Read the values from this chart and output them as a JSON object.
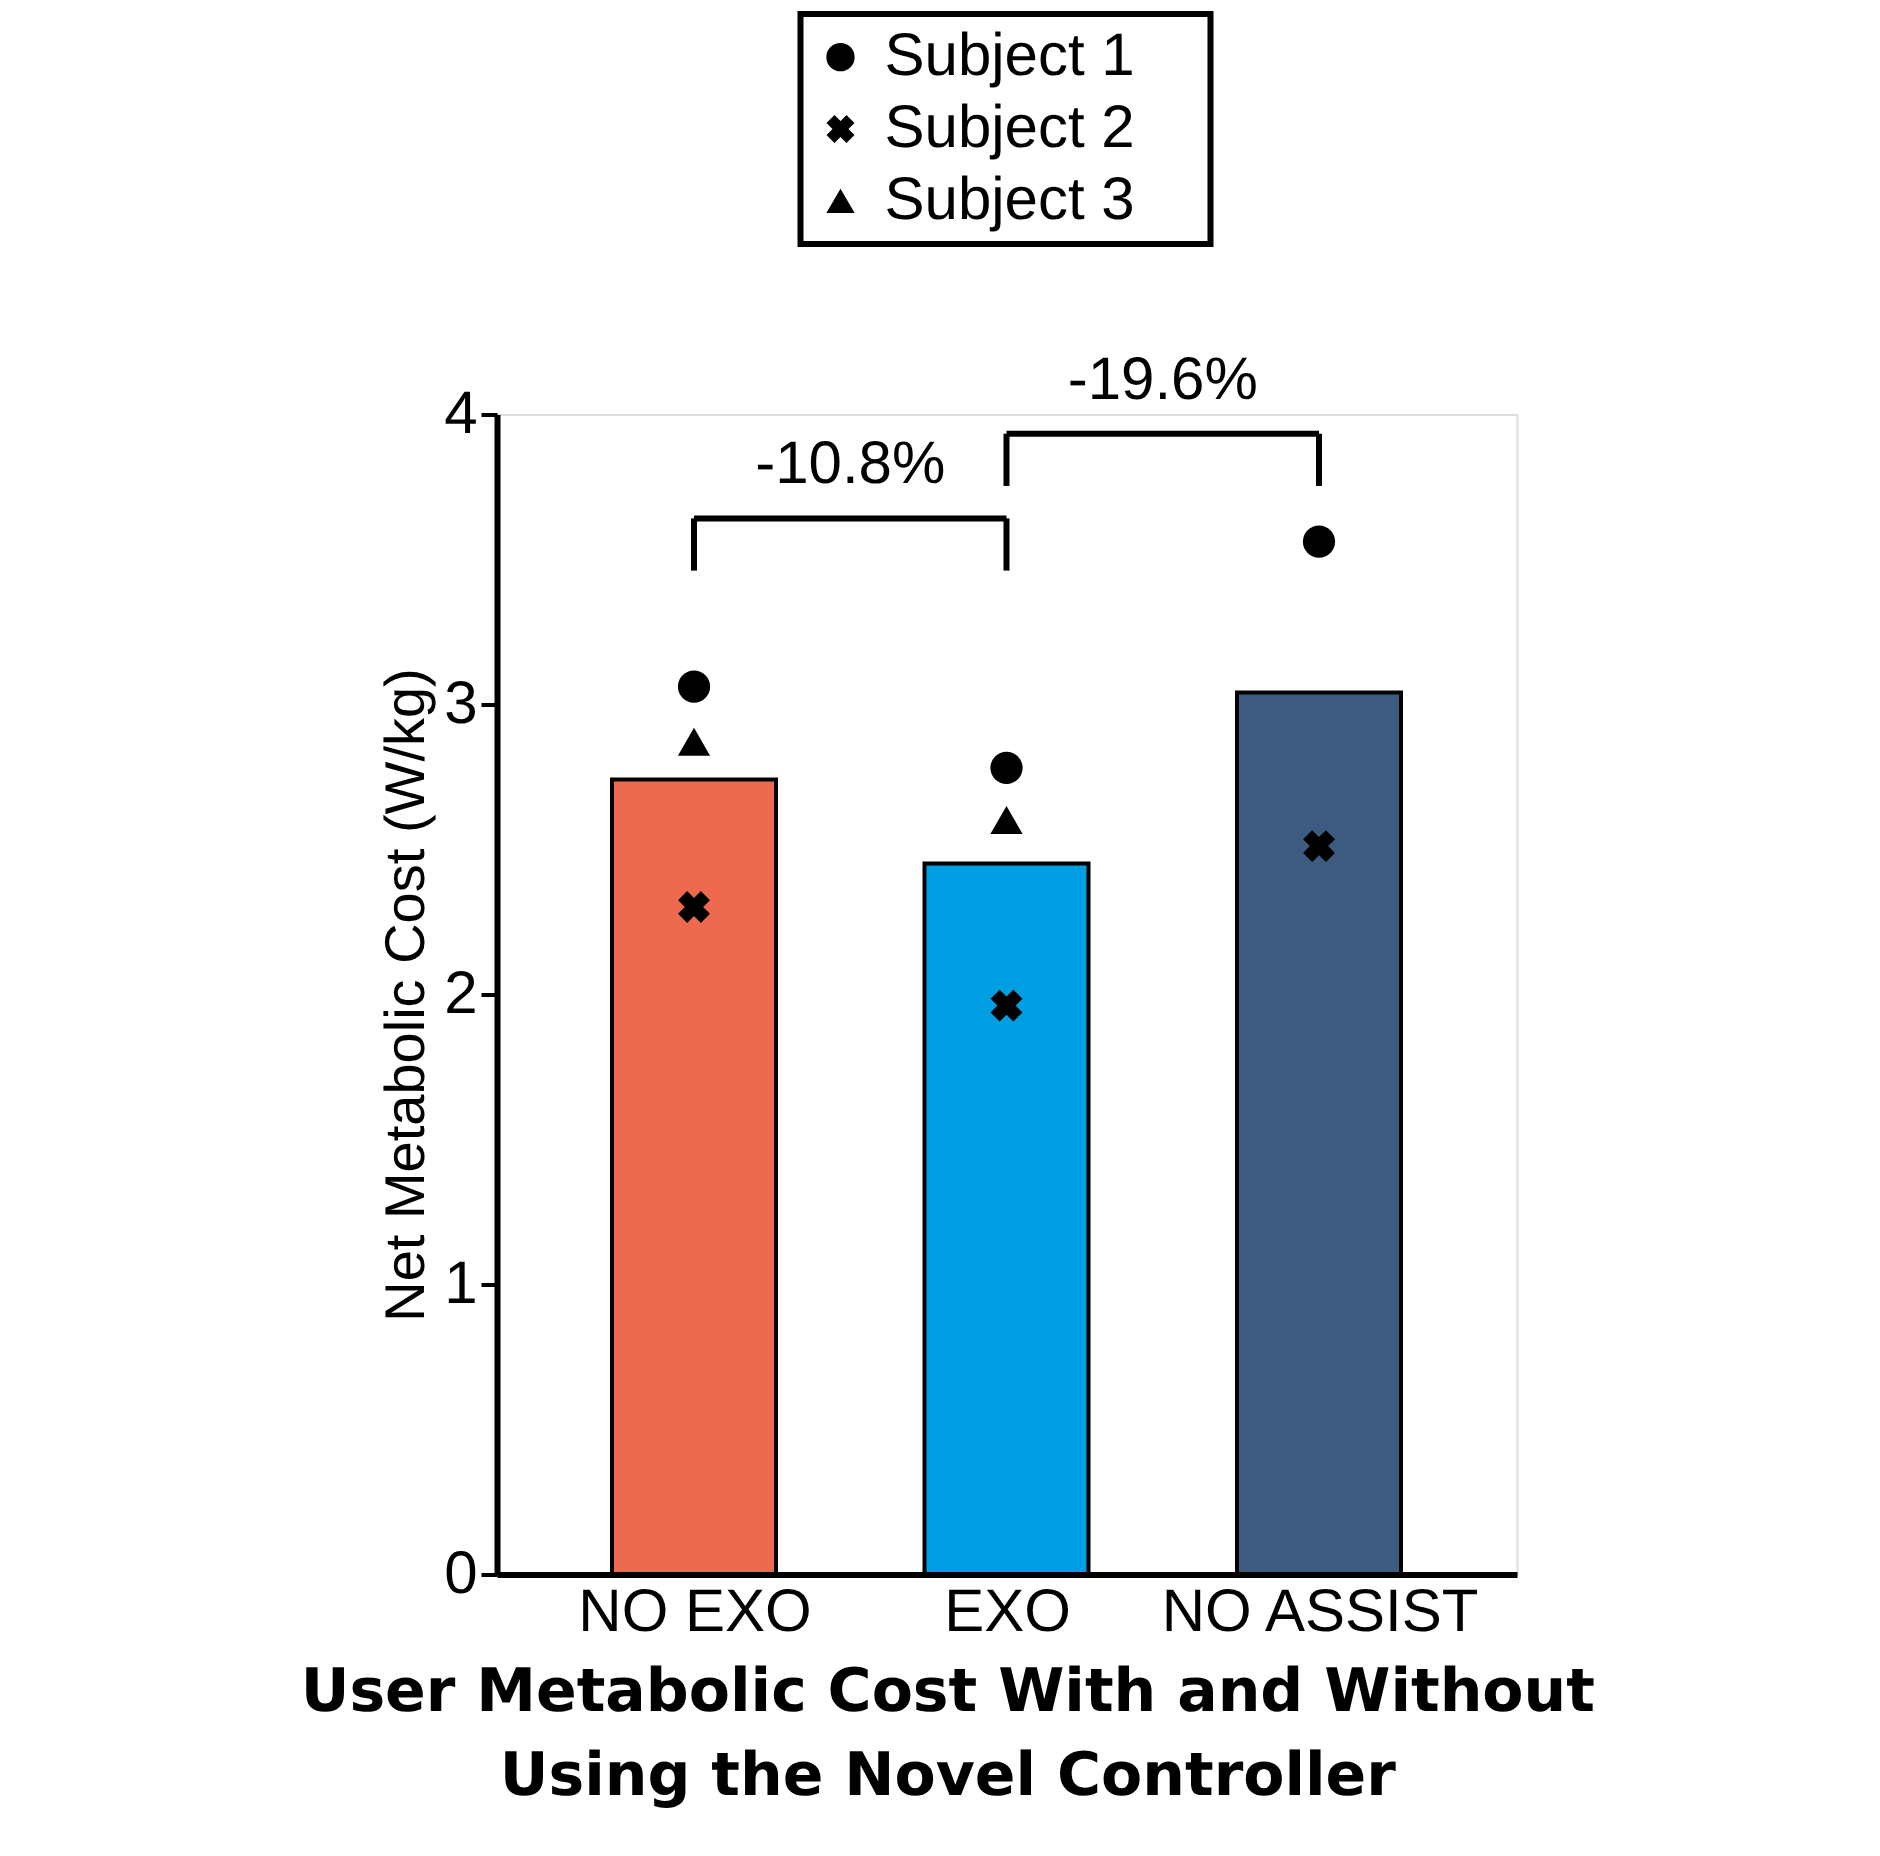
{
  "chart_data": {
    "type": "bar",
    "title": "User Metabolic Cost With and Without Using the Novel Controller",
    "ylabel": "Net Metabolic Cost (W/kg)",
    "categories": [
      "NO EXO",
      "EXO",
      "NO ASSIST"
    ],
    "series": [
      {
        "colors": [
          "#ed6a4e",
          "#009fe3",
          "#3d5a80"
        ],
        "values": [
          2.74,
          2.45,
          3.04
        ]
      },
      {
        "type": "scatter",
        "name": "Subject 1",
        "marker": "circle",
        "color": "#000000",
        "values": [
          3.06,
          2.78,
          3.56
        ]
      },
      {
        "type": "scatter",
        "name": "Subject 2",
        "marker": "cross",
        "color": "#000000",
        "values": [
          2.3,
          1.96,
          2.51
        ]
      },
      {
        "type": "scatter",
        "name": "Subject 3",
        "marker": "triangle",
        "color": "#000000",
        "values": [
          2.87,
          2.6,
          null
        ]
      }
    ],
    "annotations": [
      "-10.8%",
      "-19.6%"
    ],
    "ylim": [
      0,
      4
    ],
    "yticks": [
      0,
      1,
      2,
      3,
      4
    ],
    "grid": false,
    "legend": "top"
  }
}
